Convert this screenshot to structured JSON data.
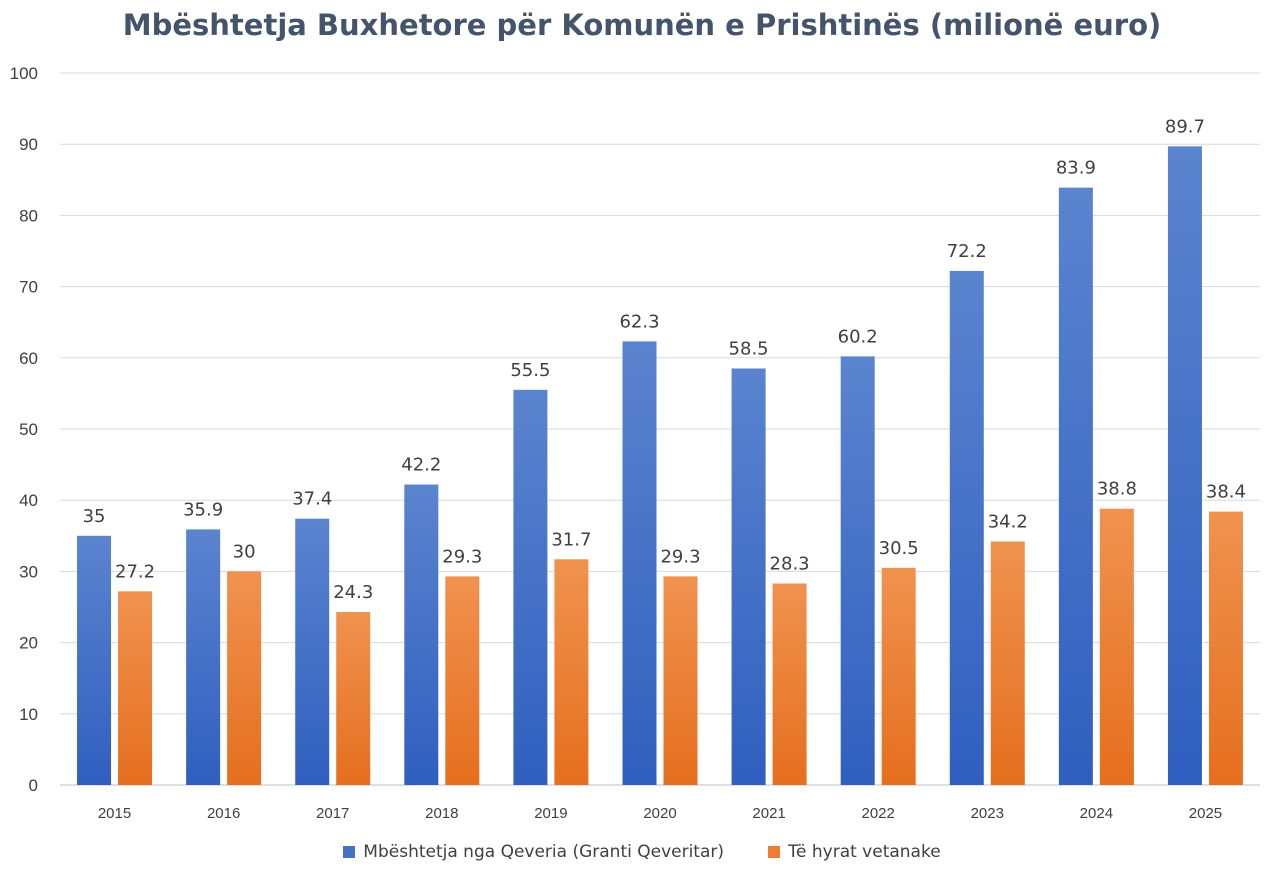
{
  "colors": {
    "series1": "#4472c4",
    "series2": "#ed7d31",
    "grid": "#d9d9d9",
    "title": "#44546a"
  },
  "chart_data": {
    "type": "bar",
    "title": "Mbështetja Buxhetore për Komunën e Prishtinës (milionë euro)",
    "xlabel": "",
    "ylabel": "",
    "ylim": [
      0,
      100
    ],
    "yticks": [
      0,
      10,
      20,
      30,
      40,
      50,
      60,
      70,
      80,
      90,
      100
    ],
    "grid": true,
    "legend_position": "bottom",
    "categories": [
      "2015",
      "2016",
      "2017",
      "2018",
      "2019",
      "2020",
      "2021",
      "2022",
      "2023",
      "2024",
      "2025"
    ],
    "series": [
      {
        "name": "Mbështetja nga Qeveria (Granti Qeveritar)",
        "values": [
          35,
          35.9,
          37.4,
          42.2,
          55.5,
          62.3,
          58.5,
          60.2,
          72.2,
          83.9,
          89.7
        ]
      },
      {
        "name": "Të hyrat vetanake",
        "values": [
          27.2,
          30,
          24.3,
          29.3,
          31.7,
          29.3,
          28.3,
          30.5,
          34.2,
          38.8,
          38.4
        ]
      }
    ]
  }
}
